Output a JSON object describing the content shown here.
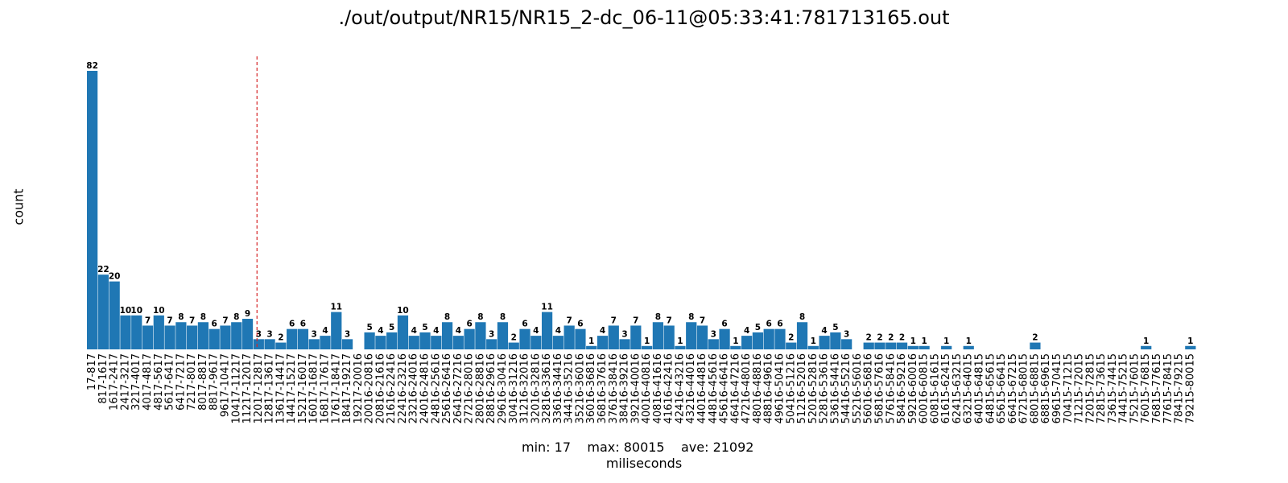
{
  "chart_data": {
    "type": "bar",
    "title": "./out/output/NR15/NR15_2-dc_06-11@05:33:41:781713165.out",
    "xlabel": "miliseconds",
    "ylabel": "count",
    "stats": {
      "min_label": "min:",
      "min": 17,
      "max_label": "max:",
      "max": 80015,
      "ave_label": "ave:",
      "ave": 21092
    },
    "ylim": [
      0,
      86
    ],
    "grid": false,
    "bar_color": "#1f77b4",
    "average_line": {
      "category_index": 14.85,
      "color": "#d62728",
      "style": "dashed"
    },
    "categories": [
      "17-817",
      "817-1617",
      "1617-2417",
      "2417-3217",
      "3217-4017",
      "4017-4817",
      "4817-5617",
      "5617-6417",
      "6417-7217",
      "7217-8017",
      "8017-8817",
      "8817-9617",
      "9617-10417",
      "10417-11217",
      "11217-12017",
      "12017-12817",
      "12817-13617",
      "13617-14417",
      "14417-15217",
      "15217-16017",
      "16017-16817",
      "16817-17617",
      "17617-18417",
      "18417-19217",
      "19217-20016",
      "20016-20816",
      "20816-21616",
      "21616-22416",
      "22416-23216",
      "23216-24016",
      "24016-24816",
      "24816-25616",
      "25616-26416",
      "26416-27216",
      "27216-28016",
      "28016-28816",
      "28816-29616",
      "29616-30416",
      "30416-31216",
      "31216-32016",
      "32016-32816",
      "32816-33616",
      "33616-34416",
      "34416-35216",
      "35216-36016",
      "36016-36816",
      "36816-37616",
      "37616-38416",
      "38416-39216",
      "39216-40016",
      "40016-40816",
      "40816-41616",
      "41616-42416",
      "42416-43216",
      "43216-44016",
      "44016-44816",
      "44816-45616",
      "45616-46416",
      "46416-47216",
      "47216-48016",
      "48016-48816",
      "48816-49616",
      "49616-50416",
      "50416-51216",
      "51216-52016",
      "52016-52816",
      "52816-53616",
      "53616-54416",
      "54416-55216",
      "55216-56016",
      "56016-56816",
      "56816-57616",
      "57616-58416",
      "58416-59216",
      "59216-60016",
      "60016-60815",
      "60815-61615",
      "61615-62415",
      "62415-63215",
      "63215-64015",
      "64015-64815",
      "64815-65615",
      "65615-66415",
      "66415-67215",
      "67215-68015",
      "68015-68815",
      "68815-69615",
      "69615-70415",
      "70415-71215",
      "71215-72015",
      "72015-72815",
      "72815-73615",
      "73615-74415",
      "74415-75215",
      "75215-76015",
      "76015-76815",
      "76815-77615",
      "77615-78415",
      "78415-79215",
      "79215-80015"
    ],
    "values": [
      82,
      22,
      20,
      10,
      10,
      7,
      10,
      7,
      8,
      7,
      8,
      6,
      7,
      8,
      9,
      3,
      3,
      2,
      6,
      6,
      3,
      4,
      11,
      3,
      0,
      5,
      4,
      5,
      10,
      4,
      5,
      4,
      8,
      4,
      6,
      8,
      3,
      8,
      2,
      6,
      4,
      11,
      4,
      7,
      6,
      1,
      4,
      7,
      3,
      7,
      1,
      8,
      7,
      1,
      8,
      7,
      3,
      6,
      1,
      4,
      5,
      6,
      6,
      2,
      8,
      1,
      4,
      5,
      3,
      0,
      2,
      2,
      2,
      2,
      1,
      1,
      0,
      1,
      0,
      1,
      0,
      0,
      0,
      0,
      0,
      2,
      0,
      0,
      0,
      0,
      0,
      0,
      0,
      0,
      0,
      1,
      0,
      0,
      0,
      1
    ]
  }
}
